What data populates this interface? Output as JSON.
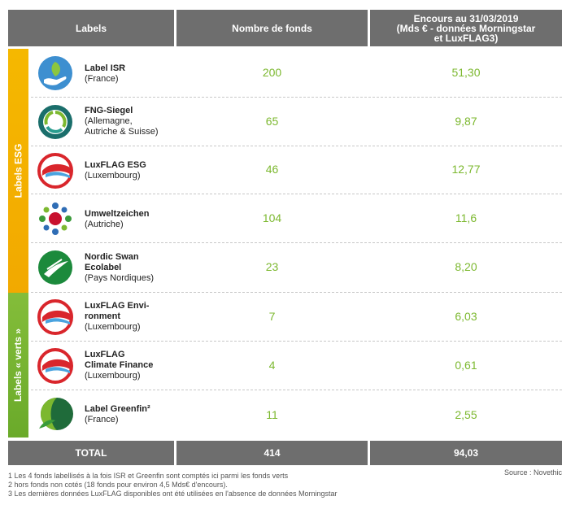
{
  "header": {
    "labels": "Labels",
    "nombre": "Nombre de fonds",
    "encours_line1": "Encours au 31/03/2019",
    "encours_line2": "(Mds € - données Morningstar",
    "encours_line3": "et LuxFLAG3)"
  },
  "bands": {
    "esg": "Labels ESG",
    "verts": "Labels « verts »"
  },
  "rows": [
    {
      "name_l1": "Label ISR",
      "name_l2": "",
      "sub_l1": "(France)",
      "sub_l2": "",
      "funds": "200",
      "amount": "51,30",
      "icon": "isr-hand-leaf-icon"
    },
    {
      "name_l1": "FNG-Siegel",
      "name_l2": "",
      "sub_l1": "(Allemagne,",
      "sub_l2": "Autriche & Suisse)",
      "funds": "65",
      "amount": "9,87",
      "icon": "fng-siegel-icon"
    },
    {
      "name_l1": "LuxFLAG ESG",
      "name_l2": "",
      "sub_l1": "(Luxembourg)",
      "sub_l2": "",
      "funds": "46",
      "amount": "12,77",
      "icon": "luxflag-icon"
    },
    {
      "name_l1": "Umweltzeichen",
      "name_l2": "",
      "sub_l1": "(Autriche)",
      "sub_l2": "",
      "funds": "104",
      "amount": "11,6",
      "icon": "umweltzeichen-icon"
    },
    {
      "name_l1": "Nordic Swan",
      "name_l2": "Ecolabel",
      "sub_l1": "(Pays Nordiques)",
      "sub_l2": "",
      "funds": "23",
      "amount": "8,20",
      "icon": "nordic-swan-icon"
    },
    {
      "name_l1": "LuxFLAG Envi-",
      "name_l2": "ronment",
      "sub_l1": "(Luxembourg)",
      "sub_l2": "",
      "funds": "7",
      "amount": "6,03",
      "icon": "luxflag-icon"
    },
    {
      "name_l1": "LuxFLAG",
      "name_l2": "Climate Finance",
      "sub_l1": "(Luxembourg)",
      "sub_l2": "",
      "funds": "4",
      "amount": "0,61",
      "icon": "luxflag-icon"
    },
    {
      "name_l1": "Label Greenfin²",
      "name_l2": "",
      "sub_l1": "(France)",
      "sub_l2": "",
      "funds": "11",
      "amount": "2,55",
      "icon": "greenfin-icon"
    }
  ],
  "total": {
    "label": "TOTAL",
    "funds": "414",
    "amount": "94,03"
  },
  "notes": [
    "1 Les 4 fonds labellisés à la fois ISR et Greenfin sont comptés ici parmi les fonds verts",
    "2 hors fonds non cotés (18 fonds pour environ 4,5 Mds€ d'encours).",
    "3 Les dernières données LuxFLAG disponibles ont été utilisées en l'absence de données Morningstar"
  ],
  "source": "Source : Novethic",
  "colors": {
    "header_bg": "#6e6e6e",
    "value_green": "#7cb82f",
    "esg_band": "#f5b800",
    "verts_band": "#7ab434"
  }
}
